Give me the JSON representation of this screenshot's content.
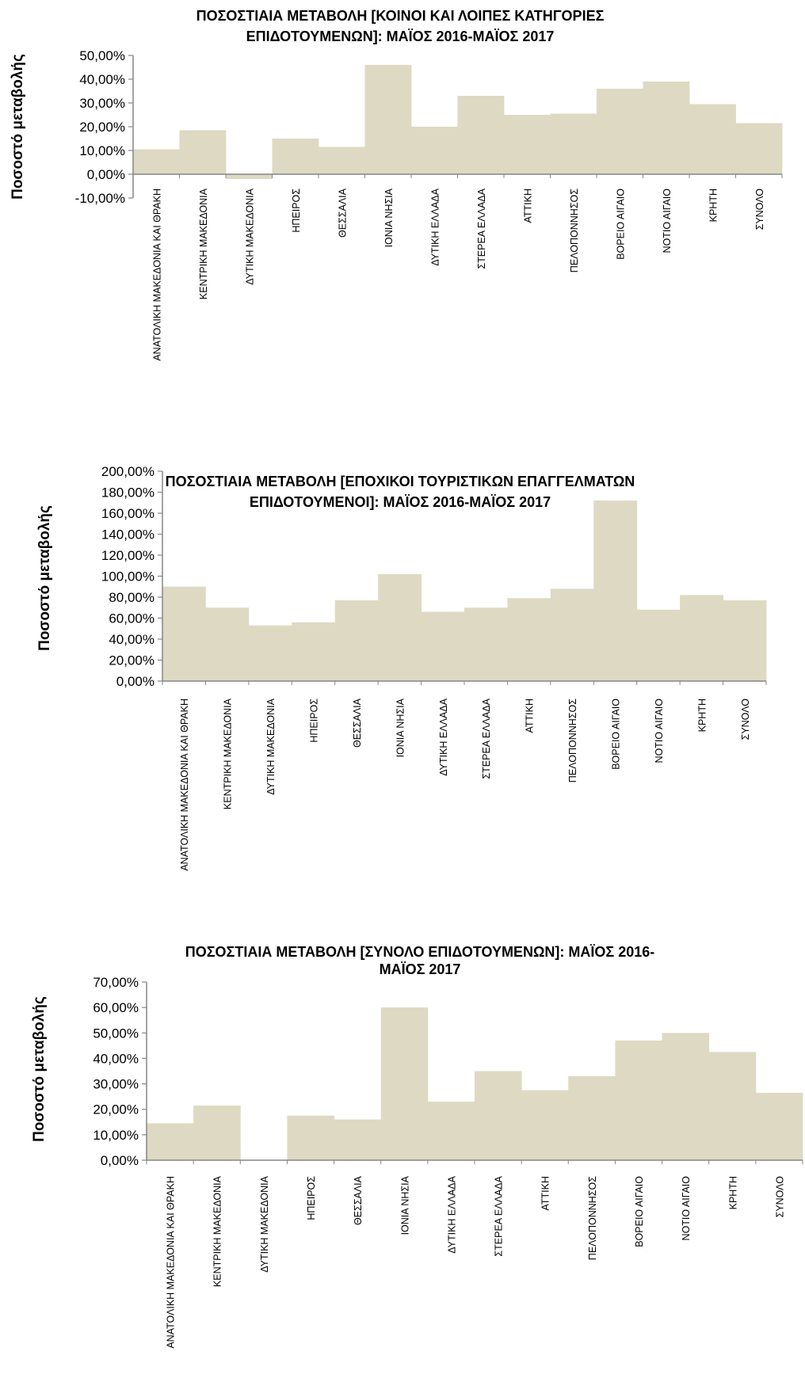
{
  "chart_data": [
    {
      "type": "bar",
      "title_lines": [
        "ΠΟΣΟΣΤΙΑΙΑ ΜΕΤΑΒΟΛΗ [ΚΟΙΝΟΙ ΚΑΙ ΛΟΙΠΕΣ ΚΑΤΗΓΟΡΙΕΣ",
        "ΕΠΙΔΟΤΟΥΜΕΝΩΝ]: ΜΑΪΟΣ 2016-ΜΑΪΟΣ 2017"
      ],
      "ylabel": "Ποσοστό μεταβολής",
      "categories": [
        "ΑΝΑΤΟΛΙΚΗ ΜΑΚΕΔΟΝΙΑ ΚΑΙ ΘΡΑΚΗ",
        "ΚΕΝΤΡΙΚΗ ΜΑΚΕΔΟΝΙΑ",
        "ΔΥΤΙΚΗ ΜΑΚΕΔΟΝΙΑ",
        "ΗΠΕΙΡΟΣ",
        "ΘΕΣΣΑΛΙΑ",
        "ΙΟΝΙΑ ΝΗΣΙΑ",
        "ΔΥΤΙΚΗ ΕΛΛΑΔΑ",
        "ΣΤΕΡΕΑ ΕΛΛΑΔΑ",
        "ΑΤΤΙΚΗ",
        "ΠΕΛΟΠΟΝΝΗΣΟΣ",
        "ΒΟΡΕΙΟ ΑΙΓΑΙΟ",
        "ΝΟΤΙΟ ΑΙΓΑΙΟ",
        "ΚΡΗΤΗ",
        "ΣΥΝΟΛΟ"
      ],
      "values": [
        10.5,
        18.5,
        -2.0,
        15.0,
        11.5,
        46.0,
        20.0,
        33.0,
        25.0,
        25.5,
        36.0,
        39.0,
        29.5,
        21.5
      ],
      "yticks": [
        "50,00%",
        "40,00%",
        "30,00%",
        "20,00%",
        "10,00%",
        "0,00%",
        "-10,00%"
      ],
      "ylim": [
        -10,
        50
      ],
      "bar_color": "#ddd9c3",
      "grid": false
    },
    {
      "type": "bar",
      "title_lines": [
        "ΠΟΣΟΣΤΙΑΙΑ ΜΕΤΑΒΟΛΗ [ΕΠΟΧΙΚΟΙ ΤΟΥΡΙΣΤΙΚΩΝ ΕΠΑΓΓΕΛΜΑΤΩΝ",
        "ΕΠΙΔΟΤΟΥΜΕΝΟΙ]: ΜΑΪΟΣ 2016-ΜΑΪΟΣ 2017"
      ],
      "ylabel": "Ποσοστό μεταβολής",
      "categories": [
        "ΑΝΑΤΟΛΙΚΗ ΜΑΚΕΔΟΝΙΑ ΚΑΙ ΘΡΑΚΗ",
        "ΚΕΝΤΡΙΚΗ ΜΑΚΕΔΟΝΙΑ",
        "ΔΥΤΙΚΗ ΜΑΚΕΔΟΝΙΑ",
        "ΗΠΕΙΡΟΣ",
        "ΘΕΣΣΑΛΙΑ",
        "ΙΟΝΙΑ ΝΗΣΙΑ",
        "ΔΥΤΙΚΗ ΕΛΛΑΔΑ",
        "ΣΤΕΡΕΑ ΕΛΛΑΔΑ",
        "ΑΤΤΙΚΗ",
        "ΠΕΛΟΠΟΝΝΗΣΟΣ",
        "ΒΟΡΕΙΟ ΑΙΓΑΙΟ",
        "ΝΟΤΙΟ ΑΙΓΑΙΟ",
        "ΚΡΗΤΗ",
        "ΣΥΝΟΛΟ"
      ],
      "values": [
        90.0,
        70.0,
        53.0,
        56.0,
        77.0,
        102.0,
        66.0,
        70.0,
        79.0,
        88.0,
        172.0,
        68.0,
        82.0,
        77.0
      ],
      "yticks": [
        "200,00%",
        "180,00%",
        "160,00%",
        "140,00%",
        "120,00%",
        "100,00%",
        "80,00%",
        "60,00%",
        "40,00%",
        "20,00%",
        "0,00%"
      ],
      "ylim": [
        0,
        200
      ],
      "bar_color": "#ddd9c3",
      "grid": false
    },
    {
      "type": "bar",
      "title_lines": [
        "ΠΟΣΟΣΤΙΑΙΑ ΜΕΤΑΒΟΛΗ [ΣΥΝΟΛΟ ΕΠΙΔΟΤΟΥΜΕΝΩΝ]: ΜΑΪΟΣ  2016-",
        "ΜΑΪΟΣ 2017"
      ],
      "ylabel": "Ποσοστό μεταβολής",
      "categories": [
        "ΑΝΑΤΟΛΙΚΗ ΜΑΚΕΔΟΝΙΑ ΚΑΙ ΘΡΑΚΗ",
        "ΚΕΝΤΡΙΚΗ ΜΑΚΕΔΟΝΙΑ",
        "ΔΥΤΙΚΗ ΜΑΚΕΔΟΝΙΑ",
        "ΗΠΕΙΡΟΣ",
        "ΘΕΣΣΑΛΙΑ",
        "ΙΟΝΙΑ ΝΗΣΙΑ",
        "ΔΥΤΙΚΗ ΕΛΛΑΔΑ",
        "ΣΤΕΡΕΑ ΕΛΛΑΔΑ",
        "ΑΤΤΙΚΗ",
        "ΠΕΛΟΠΟΝΝΗΣΟΣ",
        "ΒΟΡΕΙΟ ΑΙΓΑΙΟ",
        "ΝΟΤΙΟ ΑΙΓΑΙΟ",
        "ΚΡΗΤΗ",
        "ΣΥΝΟΛΟ"
      ],
      "values": [
        14.5,
        21.5,
        0.0,
        17.5,
        16.0,
        60.0,
        23.0,
        35.0,
        27.5,
        33.0,
        47.0,
        50.0,
        42.5,
        26.5
      ],
      "yticks": [
        "70,00%",
        "60,00%",
        "50,00%",
        "40,00%",
        "30,00%",
        "20,00%",
        "10,00%",
        "0,00%"
      ],
      "ylim": [
        0,
        70
      ],
      "bar_color": "#ddd9c3",
      "grid": false
    }
  ]
}
